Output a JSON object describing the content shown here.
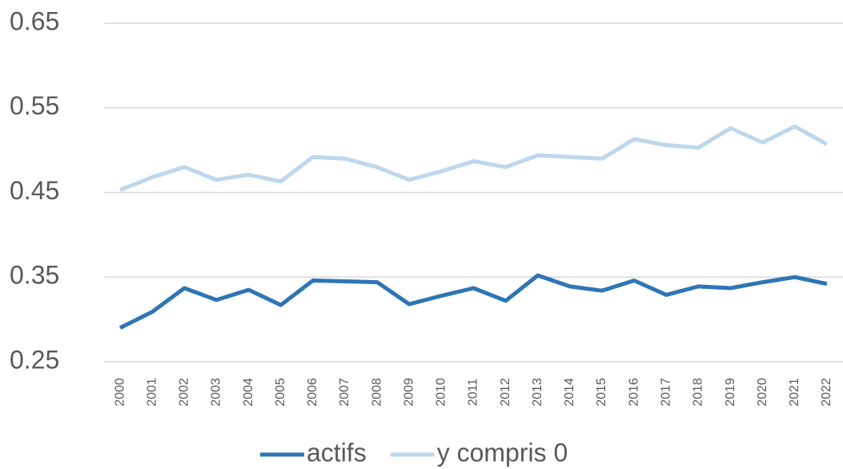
{
  "chart_data": {
    "type": "line",
    "categories": [
      "2000",
      "2001",
      "2002",
      "2003",
      "2004",
      "2005",
      "2006",
      "2007",
      "2008",
      "2009",
      "2010",
      "2011",
      "2012",
      "2013",
      "2014",
      "2015",
      "2016",
      "2017",
      "2018",
      "2019",
      "2020",
      "2021",
      "2022"
    ],
    "series": [
      {
        "name": "actifs",
        "color": "#2e75b6",
        "values": [
          0.29,
          0.309,
          0.337,
          0.323,
          0.335,
          0.317,
          0.346,
          0.345,
          0.344,
          0.318,
          0.328,
          0.337,
          0.322,
          0.352,
          0.339,
          0.334,
          0.346,
          0.329,
          0.339,
          0.337,
          0.344,
          0.35,
          0.342
        ]
      },
      {
        "name": "y compris 0",
        "color": "#bdd7ee",
        "values": [
          0.453,
          0.468,
          0.48,
          0.465,
          0.471,
          0.463,
          0.492,
          0.49,
          0.48,
          0.465,
          0.475,
          0.487,
          0.48,
          0.494,
          0.492,
          0.49,
          0.513,
          0.506,
          0.503,
          0.526,
          0.509,
          0.528,
          0.507
        ]
      }
    ],
    "ylim": [
      0.25,
      0.65
    ],
    "yticks": [
      0.25,
      0.35,
      0.45,
      0.55,
      0.65
    ],
    "grid": true,
    "legend": "bottom"
  }
}
